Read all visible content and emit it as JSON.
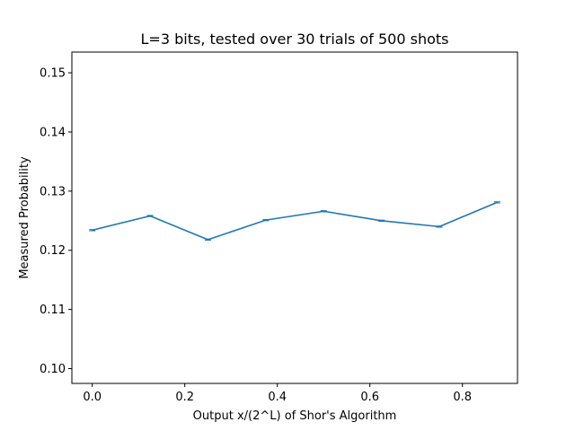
{
  "chart_data": {
    "type": "line",
    "title": "L=3 bits, tested over 30 trials of 500 shots",
    "xlabel": "Output x/(2^L) of Shor's Algorithm",
    "ylabel": "Measured Probability",
    "xlim": [
      -0.044,
      0.919
    ],
    "ylim": [
      0.0975,
      0.1535
    ],
    "xticks": [
      0.0,
      0.2,
      0.4,
      0.6,
      0.8
    ],
    "xtick_labels": [
      "0.0",
      "0.2",
      "0.4",
      "0.6",
      "0.8"
    ],
    "yticks": [
      0.1,
      0.11,
      0.12,
      0.13,
      0.14,
      0.15
    ],
    "ytick_labels": [
      "0.10",
      "0.11",
      "0.12",
      "0.13",
      "0.14",
      "0.15"
    ],
    "grid": false,
    "color": "#1f77b4",
    "series": [
      {
        "x": [
          0.0,
          0.125,
          0.25,
          0.375,
          0.5,
          0.625,
          0.75,
          0.875
        ],
        "values": [
          0.1234,
          0.1258,
          0.1218,
          0.1251,
          0.1266,
          0.125,
          0.124,
          0.1281
        ],
        "error": [
          0.0001,
          0.0001,
          0.0001,
          0.0001,
          0.0001,
          0.0001,
          0.0001,
          0.0001
        ]
      }
    ]
  }
}
